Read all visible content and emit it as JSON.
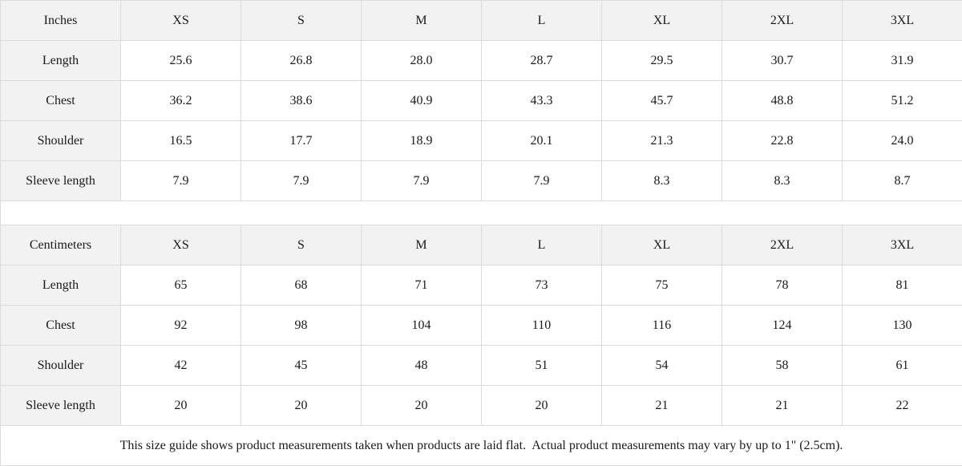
{
  "inches": {
    "header": [
      "Inches",
      "XS",
      "S",
      "M",
      "L",
      "XL",
      "2XL",
      "3XL"
    ],
    "rows": [
      [
        "Length",
        "25.6",
        "26.8",
        "28.0",
        "28.7",
        "29.5",
        "30.7",
        "31.9"
      ],
      [
        "Chest",
        "36.2",
        "38.6",
        "40.9",
        "43.3",
        "45.7",
        "48.8",
        "51.2"
      ],
      [
        "Shoulder",
        "16.5",
        "17.7",
        "18.9",
        "20.1",
        "21.3",
        "22.8",
        "24.0"
      ],
      [
        "Sleeve length",
        "7.9",
        "7.9",
        "7.9",
        "7.9",
        "8.3",
        "8.3",
        "8.7"
      ]
    ]
  },
  "centimeters": {
    "header": [
      "Centimeters",
      "XS",
      "S",
      "M",
      "L",
      "XL",
      "2XL",
      "3XL"
    ],
    "rows": [
      [
        "Length",
        "65",
        "68",
        "71",
        "73",
        "75",
        "78",
        "81"
      ],
      [
        "Chest",
        "92",
        "98",
        "104",
        "110",
        "116",
        "124",
        "130"
      ],
      [
        "Shoulder",
        "42",
        "45",
        "48",
        "51",
        "54",
        "58",
        "61"
      ],
      [
        "Sleeve length",
        "20",
        "20",
        "20",
        "20",
        "21",
        "21",
        "22"
      ]
    ]
  },
  "note": "This size guide shows product measurements taken when products are laid flat.  Actual product measurements may vary by up to 1\" (2.5cm)."
}
